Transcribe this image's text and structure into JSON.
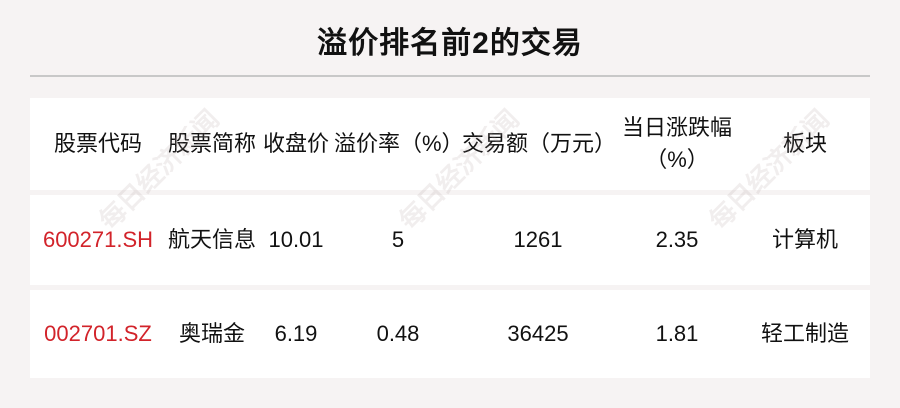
{
  "title": "溢价排名前2的交易",
  "watermark": "每日经济新闻",
  "headers": [
    "股票代码",
    "股票简称",
    "收盘价",
    "溢价率（%）",
    "交易额（万元）",
    "当日涨跌幅（%）",
    "板块"
  ],
  "rows": [
    [
      "600271.SH",
      "航天信息",
      "10.01",
      "5",
      "1261",
      "2.35",
      "计算机"
    ],
    [
      "002701.SZ",
      "奥瑞金",
      "6.19",
      "0.48",
      "36425",
      "1.81",
      "轻工制造"
    ]
  ],
  "colors": {
    "code": "#d2232a",
    "background": "#f6f3f3"
  }
}
